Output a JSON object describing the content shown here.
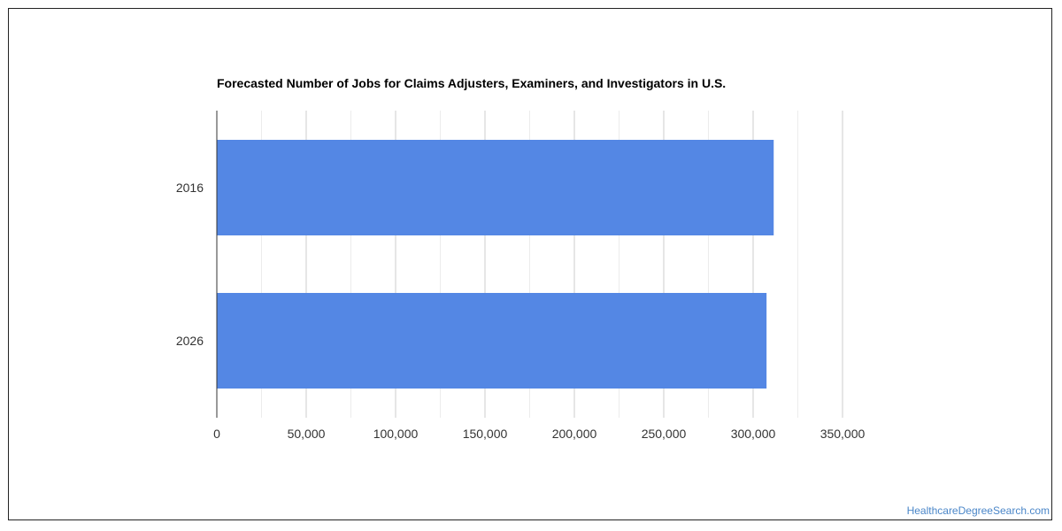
{
  "chart_data": {
    "type": "bar",
    "orientation": "horizontal",
    "title": "Forecasted Number of Jobs for Claims Adjusters, Examiners, and Investigators in U.S.",
    "categories": [
      "2016",
      "2026"
    ],
    "values": [
      311500,
      307500
    ],
    "xlabel": "",
    "ylabel": "",
    "xlim": [
      0,
      350000
    ],
    "x_ticks": [
      0,
      50000,
      100000,
      150000,
      200000,
      250000,
      300000,
      350000
    ],
    "x_tick_labels": [
      "0",
      "50,000",
      "100,000",
      "150,000",
      "200,000",
      "250,000",
      "300,000",
      "350,000"
    ],
    "bar_color": "#5487e4",
    "grid": true
  },
  "watermark": "HealthcareDegreeSearch.com"
}
